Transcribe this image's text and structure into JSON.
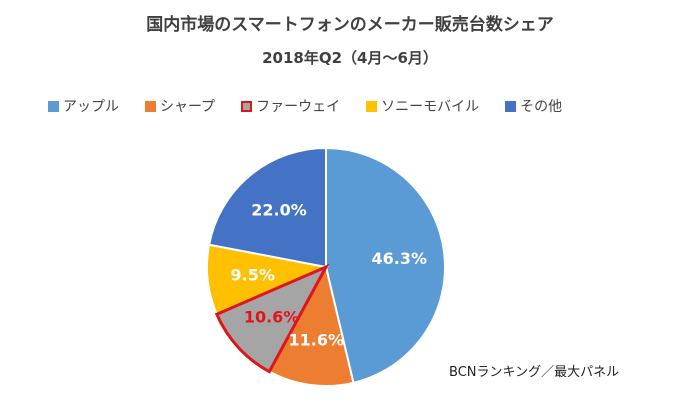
{
  "chart_data": {
    "type": "pie",
    "title": "国内市場のスマートフォンのメーカー販売台数シェア",
    "subtitle": "2018年Q2（4月～6月）",
    "legend_position": "top",
    "source_note": "BCNランキング／最大パネル",
    "slices": [
      {
        "name": "アップル",
        "value": 46.3,
        "label": "46.3%",
        "color": "#5B9BD5",
        "highlight": false
      },
      {
        "name": "シャープ",
        "value": 11.6,
        "label": "11.6%",
        "color": "#ED7D31",
        "highlight": false
      },
      {
        "name": "ファーウェイ",
        "value": 10.6,
        "label": "10.6%",
        "color": "#A5A5A5",
        "highlight": true,
        "border_color": "#E0151B"
      },
      {
        "name": "ソニーモバイル",
        "value": 9.5,
        "label": "9.5%",
        "color": "#FFC000",
        "highlight": false
      },
      {
        "name": "その他",
        "value": 22.0,
        "label": "22.0%",
        "color": "#4472C4",
        "highlight": false
      }
    ]
  }
}
